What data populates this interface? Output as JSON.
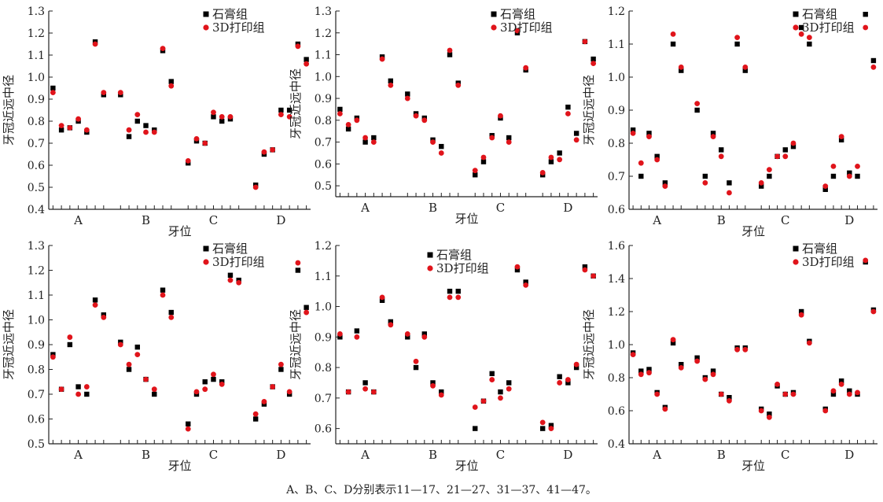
{
  "caption": "A、B、C、D分别表示11—17、21—27、31—37、41—47。",
  "colors": {
    "series1": "#000000",
    "series2": "#e0141b"
  },
  "chart_data": [
    {
      "type": "scatter",
      "xlabel": "牙位",
      "ylabel": "牙冠近远中径",
      "categories": [
        "A",
        "B",
        "C",
        "D"
      ],
      "ylim": [
        0.4,
        1.3
      ],
      "yticks": [
        0.4,
        0.5,
        0.6,
        0.7,
        0.8,
        0.9,
        1.0,
        1.1,
        1.2,
        1.3
      ],
      "series": [
        {
          "name": "石膏组",
          "marker": "square",
          "values": [
            0.95,
            0.76,
            0.77,
            0.8,
            0.75,
            1.16,
            0.92,
            0.92,
            0.73,
            0.8,
            0.78,
            0.76,
            1.12,
            0.98,
            0.61,
            0.71,
            0.7,
            0.82,
            0.8,
            0.81,
            null,
            0.51,
            0.65,
            0.67,
            0.85,
            0.85,
            1.15,
            1.08
          ]
        },
        {
          "name": "3D打印组",
          "marker": "circle",
          "values": [
            0.93,
            0.78,
            0.77,
            0.81,
            0.76,
            1.15,
            0.93,
            0.93,
            0.76,
            0.83,
            0.75,
            0.75,
            1.13,
            0.96,
            0.62,
            0.72,
            0.7,
            0.84,
            0.82,
            0.82,
            null,
            0.5,
            0.66,
            0.67,
            0.83,
            0.82,
            1.14,
            1.06
          ]
        }
      ]
    },
    {
      "type": "scatter",
      "xlabel": "牙位",
      "ylabel": "牙冠近远中径",
      "categories": [
        "A",
        "B",
        "C",
        "D"
      ],
      "ylim": [
        0.45,
        1.3
      ],
      "yticks": [
        0.5,
        0.6,
        0.7,
        0.8,
        0.9,
        1.0,
        1.1,
        1.2,
        1.3
      ],
      "series": [
        {
          "name": "石膏组",
          "marker": "square",
          "values": [
            0.85,
            0.76,
            0.81,
            0.7,
            0.72,
            1.09,
            0.98,
            0.92,
            0.83,
            0.81,
            0.71,
            0.68,
            1.1,
            0.97,
            0.55,
            0.61,
            0.73,
            0.81,
            0.72,
            1.2,
            1.03,
            0.55,
            0.61,
            0.65,
            0.86,
            0.74,
            1.16,
            1.08
          ]
        },
        {
          "name": "3D打印组",
          "marker": "circle",
          "values": [
            0.83,
            0.78,
            0.8,
            0.72,
            0.7,
            1.08,
            0.96,
            0.9,
            0.82,
            0.8,
            0.7,
            0.65,
            1.12,
            0.96,
            0.57,
            0.63,
            0.72,
            0.82,
            0.7,
            1.21,
            1.04,
            0.56,
            0.63,
            0.62,
            0.83,
            0.71,
            1.16,
            1.06
          ]
        }
      ]
    },
    {
      "type": "scatter",
      "xlabel": "牙位",
      "ylabel": "牙冠近远中径",
      "categories": [
        "A",
        "B",
        "C",
        "D"
      ],
      "ylim": [
        0.6,
        1.2
      ],
      "yticks": [
        0.6,
        0.7,
        0.8,
        0.9,
        1.0,
        1.1,
        1.2
      ],
      "series": [
        {
          "name": "石膏组",
          "marker": "square",
          "values": [
            0.84,
            0.7,
            0.83,
            0.76,
            0.68,
            1.1,
            1.02,
            0.9,
            0.7,
            0.83,
            0.78,
            0.68,
            1.1,
            1.02,
            0.67,
            0.7,
            0.76,
            0.78,
            0.79,
            1.15,
            1.1,
            0.66,
            0.7,
            0.81,
            0.71,
            0.7,
            1.19,
            1.05
          ]
        },
        {
          "name": "3D打印组",
          "marker": "circle",
          "values": [
            0.83,
            0.74,
            0.82,
            0.75,
            0.67,
            1.13,
            1.03,
            0.92,
            0.68,
            0.82,
            0.76,
            0.65,
            1.12,
            1.03,
            0.68,
            0.72,
            0.76,
            0.76,
            0.8,
            1.13,
            1.12,
            0.67,
            0.73,
            0.82,
            0.7,
            0.73,
            1.15,
            1.03
          ]
        }
      ]
    },
    {
      "type": "scatter",
      "xlabel": "牙位",
      "ylabel": "牙冠近远中径",
      "categories": [
        "A",
        "B",
        "C",
        "D"
      ],
      "ylim": [
        0.5,
        1.3
      ],
      "yticks": [
        0.5,
        0.6,
        0.7,
        0.8,
        0.9,
        1.0,
        1.1,
        1.2,
        1.3
      ],
      "series": [
        {
          "name": "石膏组",
          "marker": "square",
          "values": [
            0.86,
            0.72,
            0.9,
            0.73,
            0.7,
            1.08,
            1.02,
            0.91,
            0.8,
            0.89,
            0.76,
            0.7,
            1.12,
            1.03,
            0.58,
            0.7,
            0.75,
            0.76,
            0.75,
            1.18,
            1.16,
            0.6,
            0.66,
            0.73,
            0.8,
            0.7,
            1.2,
            1.05
          ]
        },
        {
          "name": "3D打印组",
          "marker": "circle",
          "values": [
            0.85,
            0.72,
            0.93,
            0.7,
            0.73,
            1.06,
            1.01,
            0.9,
            0.82,
            0.86,
            0.76,
            0.72,
            1.1,
            1.01,
            0.56,
            0.71,
            0.72,
            0.78,
            0.74,
            1.16,
            1.15,
            0.62,
            0.67,
            0.73,
            0.82,
            0.71,
            1.23,
            1.03
          ]
        }
      ]
    },
    {
      "type": "scatter",
      "xlabel": "牙位",
      "ylabel": "牙冠近远中径",
      "categories": [
        "A",
        "B",
        "C",
        "D"
      ],
      "ylim": [
        0.55,
        1.2
      ],
      "yticks": [
        0.6,
        0.7,
        0.8,
        0.9,
        1.0,
        1.1,
        1.2
      ],
      "series": [
        {
          "name": "石膏组",
          "marker": "square",
          "values": [
            0.9,
            0.72,
            0.92,
            0.75,
            0.72,
            1.02,
            0.95,
            0.9,
            0.8,
            0.91,
            0.75,
            0.72,
            1.05,
            1.05,
            0.6,
            0.69,
            0.78,
            0.72,
            0.75,
            1.12,
            1.08,
            0.6,
            0.61,
            0.77,
            0.75,
            0.8,
            1.13,
            1.1
          ]
        },
        {
          "name": "3D打印组",
          "marker": "circle",
          "values": [
            0.91,
            0.72,
            0.9,
            0.73,
            0.72,
            1.03,
            0.94,
            0.91,
            0.82,
            0.9,
            0.74,
            0.71,
            1.03,
            1.03,
            0.67,
            0.69,
            0.76,
            0.7,
            0.73,
            1.13,
            1.07,
            0.62,
            0.6,
            0.75,
            0.76,
            0.81,
            1.12,
            1.1
          ]
        }
      ]
    },
    {
      "type": "scatter",
      "xlabel": "牙位",
      "ylabel": "牙冠近远中径",
      "categories": [
        "A",
        "B",
        "C",
        "D"
      ],
      "ylim": [
        0.4,
        1.6
      ],
      "yticks": [
        0.4,
        0.6,
        0.8,
        1.0,
        1.2,
        1.4,
        1.6
      ],
      "series": [
        {
          "name": "石膏组",
          "marker": "square",
          "values": [
            0.95,
            0.84,
            0.85,
            0.71,
            0.62,
            1.01,
            0.88,
            0.92,
            0.8,
            0.84,
            0.7,
            0.68,
            0.98,
            0.98,
            0.61,
            0.58,
            0.75,
            0.7,
            0.71,
            1.2,
            1.02,
            0.61,
            0.7,
            0.78,
            0.72,
            0.7,
            1.5,
            1.21
          ]
        },
        {
          "name": "3D打印组",
          "marker": "circle",
          "values": [
            0.94,
            0.82,
            0.83,
            0.7,
            0.61,
            1.03,
            0.86,
            0.9,
            0.79,
            0.82,
            0.7,
            0.66,
            0.97,
            0.97,
            0.6,
            0.56,
            0.76,
            0.7,
            0.7,
            1.18,
            1.01,
            0.6,
            0.72,
            0.76,
            0.7,
            0.71,
            1.51,
            1.2
          ]
        }
      ]
    }
  ]
}
